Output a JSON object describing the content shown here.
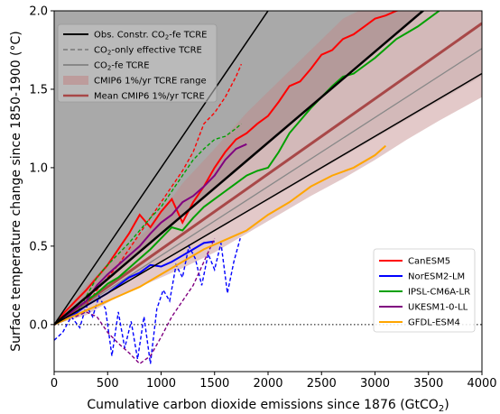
{
  "chart_data": {
    "type": "line",
    "xlabel": "Cumulative carbon dioxide emissions since 1876 (GtCO",
    "xlabel_sub": "2",
    "xlabel_end": ")",
    "ylabel": "Surface temperature change since 1850-1900 (°C)",
    "xlim": [
      0,
      4000
    ],
    "ylim": [
      -0.3,
      2.0
    ],
    "x_ticks": [
      0,
      500,
      1000,
      1500,
      2000,
      2500,
      3000,
      3500,
      4000
    ],
    "y_ticks": [
      0.0,
      0.5,
      1.0,
      1.5,
      2.0
    ],
    "y_tick_labels": [
      "0.0",
      "0.5",
      "1.0",
      "1.5",
      "2.0"
    ],
    "zero_line": "dotted",
    "grid": false,
    "bands": [
      {
        "name": "Observationally constrained range",
        "color": "#aaaaaa",
        "slope_low": 0.00058,
        "slope_high": 0.001
      },
      {
        "name": "Wider constrained range",
        "color": "#e0e0e0",
        "slope_low": 0.00044,
        "slope_high": 0.00058
      }
    ],
    "tcre_lines": {
      "obs": {
        "slopes": [
          0.0004,
          0.00058,
          0.001
        ],
        "widths": [
          1.5,
          2.5,
          1.5
        ],
        "color": "#000000"
      },
      "co2_fe": {
        "slopes": [
          0.00044
        ],
        "color": "#777777"
      },
      "mean_cmip6": {
        "slope": 0.00048,
        "color": "#a84848"
      }
    },
    "cmip6_range": {
      "color": "#c08888",
      "x": [
        0,
        300,
        600,
        900,
        1200,
        1500,
        1800,
        2100,
        2400,
        2700,
        3000,
        3300,
        3600,
        4000
      ],
      "low": [
        0.0,
        0.06,
        0.18,
        0.27,
        0.36,
        0.46,
        0.58,
        0.7,
        0.82,
        0.93,
        1.05,
        1.18,
        1.3,
        1.45
      ],
      "high": [
        0.0,
        0.25,
        0.45,
        0.62,
        0.9,
        1.12,
        1.35,
        1.55,
        1.75,
        1.95,
        2.05,
        2.15,
        2.25,
        2.4
      ]
    },
    "legend_top": [
      {
        "label": "Obs. Constr. CO",
        "sub": "2",
        "rest": "-fe TCRE",
        "style": "solid",
        "color": "#000000"
      },
      {
        "label": "CO",
        "sub": "2",
        "rest": "-only effective TCRE",
        "style": "dashed",
        "color": "#888888"
      },
      {
        "label": "CO",
        "sub": "2",
        "rest": "-fe TCRE",
        "style": "solid",
        "color": "#888888"
      },
      {
        "label": "CMIP6 1%/yr TCRE range",
        "sub": "",
        "rest": "",
        "style": "patch",
        "color": "#c08888"
      },
      {
        "label": "Mean CMIP6 1%/yr TCRE",
        "sub": "",
        "rest": "",
        "style": "solid",
        "color": "#a84848"
      }
    ],
    "series": [
      {
        "name": "CanESM5",
        "color": "#ff0000",
        "solid_x": [
          0,
          100,
          200,
          300,
          400,
          500,
          600,
          700,
          800,
          900,
          1000,
          1100,
          1200,
          1300,
          1400,
          1500,
          1600,
          1700,
          1800,
          1900,
          2000,
          2100,
          2200,
          2300,
          2400,
          2500,
          2600,
          2700,
          2800,
          2900,
          3000,
          3100,
          3200,
          3300,
          3400
        ],
        "solid_y": [
          0.0,
          0.08,
          0.15,
          0.22,
          0.3,
          0.38,
          0.48,
          0.58,
          0.7,
          0.62,
          0.72,
          0.8,
          0.65,
          0.78,
          0.88,
          1.0,
          1.1,
          1.18,
          1.22,
          1.28,
          1.33,
          1.42,
          1.52,
          1.55,
          1.63,
          1.72,
          1.75,
          1.82,
          1.85,
          1.9,
          1.95,
          1.97,
          2.0,
          2.02,
          2.05
        ],
        "dash_x": [
          300,
          400,
          500,
          600,
          700,
          800,
          900,
          1000,
          1100,
          1200,
          1300,
          1400,
          1500,
          1600,
          1700,
          1750
        ],
        "dash_y": [
          0.12,
          0.22,
          0.3,
          0.38,
          0.48,
          0.58,
          0.68,
          0.78,
          0.88,
          0.98,
          1.1,
          1.28,
          1.35,
          1.45,
          1.58,
          1.66
        ]
      },
      {
        "name": "NorESM2-LM",
        "color": "#0000ff",
        "solid_x": [
          0,
          100,
          200,
          300,
          400,
          500,
          600,
          700,
          800,
          900,
          1000,
          1100,
          1200,
          1300,
          1400,
          1500
        ],
        "solid_y": [
          0.0,
          0.03,
          0.07,
          0.12,
          0.16,
          0.2,
          0.25,
          0.3,
          0.33,
          0.38,
          0.37,
          0.4,
          0.44,
          0.48,
          0.52,
          0.53
        ],
        "dash_x": [
          0,
          80,
          160,
          240,
          300,
          360,
          420,
          480,
          540,
          600,
          660,
          720,
          780,
          840,
          900,
          960,
          1020,
          1080,
          1140,
          1200,
          1260,
          1320,
          1380,
          1440,
          1500,
          1560,
          1620,
          1680,
          1740
        ],
        "dash_y": [
          -0.1,
          -0.05,
          0.05,
          -0.02,
          0.12,
          0.05,
          0.18,
          0.1,
          -0.2,
          0.08,
          -0.15,
          0.02,
          -0.22,
          0.05,
          -0.25,
          0.1,
          0.22,
          0.15,
          0.38,
          0.3,
          0.5,
          0.42,
          0.25,
          0.45,
          0.35,
          0.52,
          0.2,
          0.4,
          0.55
        ]
      },
      {
        "name": "IPSL-CM6A-LR",
        "color": "#00a000",
        "solid_x": [
          0,
          100,
          200,
          300,
          400,
          500,
          600,
          700,
          800,
          900,
          1000,
          1100,
          1200,
          1300,
          1400,
          1500,
          1600,
          1700,
          1800,
          1900,
          2000,
          2100,
          2200,
          2300,
          2400,
          2500,
          2600,
          2700,
          2800,
          2900,
          3000,
          3100,
          3200,
          3300,
          3400,
          3500,
          3600
        ],
        "solid_y": [
          0.0,
          0.05,
          0.1,
          0.15,
          0.2,
          0.26,
          0.3,
          0.36,
          0.42,
          0.48,
          0.55,
          0.62,
          0.6,
          0.68,
          0.75,
          0.8,
          0.85,
          0.9,
          0.95,
          0.98,
          1.0,
          1.1,
          1.22,
          1.3,
          1.38,
          1.45,
          1.52,
          1.58,
          1.6,
          1.65,
          1.7,
          1.76,
          1.82,
          1.86,
          1.9,
          1.95,
          2.0
        ],
        "dash_x": [
          200,
          300,
          400,
          500,
          600,
          700,
          800,
          900,
          1000,
          1100,
          1200,
          1300,
          1400,
          1500,
          1600,
          1700,
          1750
        ],
        "dash_y": [
          0.05,
          0.18,
          0.3,
          0.38,
          0.45,
          0.52,
          0.6,
          0.68,
          0.75,
          0.85,
          0.95,
          1.05,
          1.12,
          1.18,
          1.2,
          1.25,
          1.28
        ]
      },
      {
        "name": "UKESM1-0-LL",
        "color": "#800080",
        "solid_x": [
          0,
          100,
          200,
          300,
          400,
          500,
          600,
          700,
          800,
          900,
          1000,
          1100,
          1200,
          1300,
          1400,
          1500,
          1600,
          1700,
          1800
        ],
        "solid_y": [
          0.0,
          0.05,
          0.1,
          0.15,
          0.25,
          0.32,
          0.38,
          0.44,
          0.5,
          0.58,
          0.65,
          0.7,
          0.78,
          0.82,
          0.88,
          0.95,
          1.05,
          1.12,
          1.15
        ],
        "dash_x": [
          200,
          300,
          400,
          500,
          600,
          700,
          800,
          900,
          1000,
          1100,
          1200,
          1300,
          1400,
          1500
        ],
        "dash_y": [
          0.05,
          0.08,
          0.05,
          -0.05,
          -0.12,
          -0.18,
          -0.25,
          -0.2,
          -0.08,
          0.05,
          0.15,
          0.25,
          0.4,
          0.55
        ]
      },
      {
        "name": "GFDL-ESM4",
        "color": "#ffa500",
        "solid_x": [
          0,
          200,
          400,
          600,
          800,
          1000,
          1200,
          1400,
          1600,
          1800,
          2000,
          2200,
          2400,
          2600,
          2800,
          3000,
          3100
        ],
        "solid_y": [
          0.0,
          0.06,
          0.12,
          0.18,
          0.24,
          0.32,
          0.4,
          0.48,
          0.54,
          0.6,
          0.7,
          0.78,
          0.88,
          0.95,
          1.0,
          1.08,
          1.14
        ],
        "dash_x": [],
        "dash_y": []
      }
    ]
  }
}
